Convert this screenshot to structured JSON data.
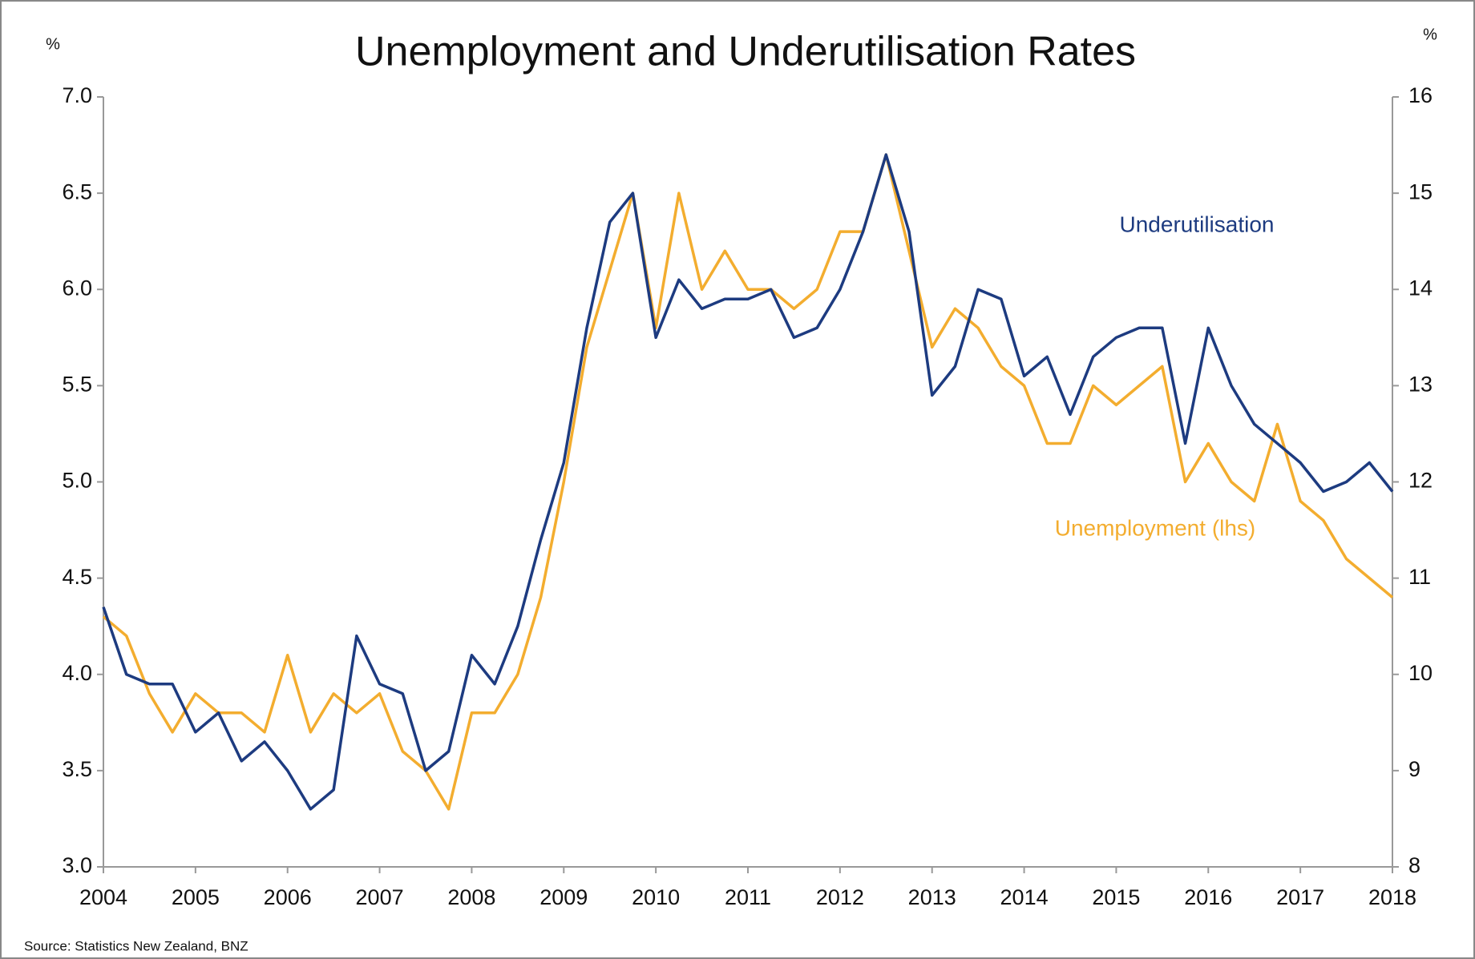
{
  "chart_data": {
    "type": "line",
    "title": "Unemployment and Underutilisation Rates",
    "y_label": "%",
    "y2_label": "%",
    "source": "Source: Statistics New Zealand, BNZ",
    "x": [
      2004,
      2004.25,
      2004.5,
      2004.75,
      2005,
      2005.25,
      2005.5,
      2005.75,
      2006,
      2006.25,
      2006.5,
      2006.75,
      2007,
      2007.25,
      2007.5,
      2007.75,
      2008,
      2008.25,
      2008.5,
      2008.75,
      2009,
      2009.25,
      2009.5,
      2009.75,
      2010,
      2010.25,
      2010.5,
      2010.75,
      2011,
      2011.25,
      2011.5,
      2011.75,
      2012,
      2012.25,
      2012.5,
      2012.75,
      2013,
      2013.25,
      2013.5,
      2013.75,
      2014,
      2014.25,
      2014.5,
      2014.75,
      2015,
      2015.25,
      2015.5,
      2015.75,
      2016,
      2016.25,
      2016.5,
      2016.75,
      2017,
      2017.25,
      2017.5,
      2017.75,
      2018
    ],
    "series": [
      {
        "name": "Unemployment (lhs)",
        "color": "#f3ad2f",
        "axis": "y",
        "values": [
          4.3,
          4.2,
          3.9,
          3.7,
          3.9,
          3.8,
          3.8,
          3.7,
          4.1,
          3.7,
          3.9,
          3.8,
          3.9,
          3.6,
          3.5,
          3.3,
          3.8,
          3.8,
          4.0,
          4.4,
          5.0,
          5.7,
          6.1,
          6.5,
          5.8,
          6.5,
          6.0,
          6.2,
          6.0,
          6.0,
          5.9,
          6.0,
          6.3,
          6.3,
          6.7,
          6.2,
          5.7,
          5.9,
          5.8,
          5.6,
          5.5,
          5.2,
          5.2,
          5.5,
          5.4,
          5.5,
          5.6,
          5.0,
          5.2,
          5.0,
          4.9,
          5.3,
          4.9,
          4.8,
          4.6,
          4.5,
          4.4
        ]
      },
      {
        "name": "Underutilisation",
        "color": "#1d3b80",
        "axis": "y2",
        "values": [
          10.7,
          10.0,
          9.9,
          9.9,
          9.4,
          9.6,
          9.1,
          9.3,
          9.0,
          8.6,
          8.8,
          10.4,
          9.9,
          9.8,
          9.0,
          9.2,
          10.2,
          9.9,
          10.5,
          11.4,
          12.2,
          13.6,
          14.7,
          15.0,
          13.5,
          14.1,
          13.8,
          13.9,
          13.9,
          14.0,
          13.5,
          13.6,
          14.0,
          14.6,
          15.4,
          14.6,
          12.9,
          13.2,
          14.0,
          13.9,
          13.1,
          13.3,
          12.7,
          13.3,
          13.5,
          13.6,
          13.6,
          12.4,
          13.6,
          13.0,
          12.6,
          12.4,
          12.2,
          11.9,
          12.0,
          12.2,
          11.9
        ]
      }
    ],
    "xlim": [
      2004,
      2018
    ],
    "xticks": [
      2004,
      2005,
      2006,
      2007,
      2008,
      2009,
      2010,
      2011,
      2012,
      2013,
      2014,
      2015,
      2016,
      2017,
      2018
    ],
    "ylim": [
      3,
      7
    ],
    "yticks": [
      {
        "value": 3,
        "label": "3.0"
      },
      3.5,
      {
        "value": 4,
        "label": "4.0"
      },
      4.5,
      {
        "value": 5,
        "label": "5.0"
      },
      5.5,
      {
        "value": 6,
        "label": "6.0"
      },
      6.5,
      {
        "value": 7,
        "label": "7.0"
      }
    ],
    "y2lim": [
      8,
      16
    ],
    "y2ticks": [
      8,
      9,
      10,
      11,
      12,
      13,
      14,
      15,
      16
    ],
    "grid": false
  }
}
